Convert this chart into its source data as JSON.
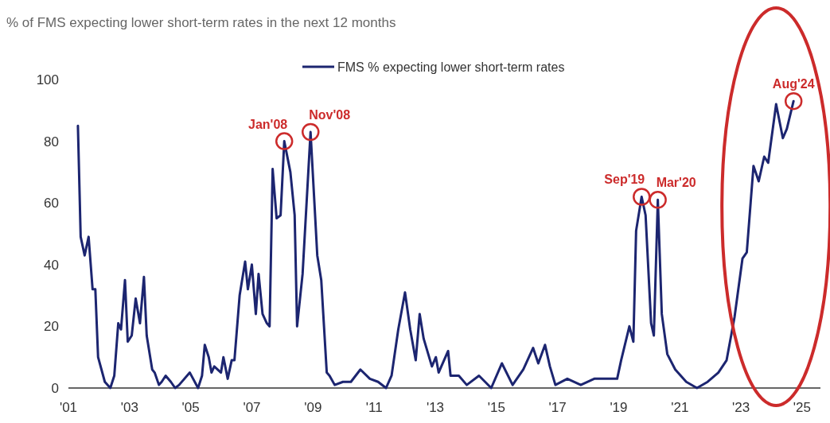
{
  "chart_data": {
    "type": "line",
    "title": "% of FMS expecting lower short-term rates in the next 12 months",
    "series": [
      {
        "name": "FMS % expecting lower short-term rates",
        "color": "#1c2570",
        "x": [
          2001.31,
          2001.4,
          2001.53,
          2001.66,
          2001.79,
          2001.88,
          2001.97,
          2002.19,
          2002.37,
          2002.5,
          2002.63,
          2002.72,
          2002.85,
          2002.94,
          2003.07,
          2003.2,
          2003.34,
          2003.47,
          2003.56,
          2003.74,
          2003.82,
          2003.96,
          2004.05,
          2004.18,
          2004.35,
          2004.49,
          2004.62,
          2004.97,
          2005.24,
          2005.37,
          2005.46,
          2005.59,
          2005.68,
          2005.77,
          2005.99,
          2006.07,
          2006.21,
          2006.34,
          2006.43,
          2006.6,
          2006.78,
          2006.87,
          2007.0,
          2007.13,
          2007.22,
          2007.35,
          2007.49,
          2007.58,
          2007.68,
          2007.81,
          2007.94,
          2008.06,
          2008.26,
          2008.4,
          2008.48,
          2008.66,
          2008.92,
          2009.14,
          2009.27,
          2009.45,
          2009.54,
          2009.71,
          2009.98,
          2010.24,
          2010.55,
          2010.86,
          2011.13,
          2011.39,
          2011.57,
          2011.79,
          2012.01,
          2012.18,
          2012.36,
          2012.49,
          2012.62,
          2012.89,
          2013.02,
          2013.11,
          2013.42,
          2013.5,
          2013.77,
          2014.03,
          2014.43,
          2014.83,
          2015.18,
          2015.53,
          2015.88,
          2016.2,
          2016.37,
          2016.59,
          2016.75,
          2016.93,
          2017.32,
          2017.76,
          2018.2,
          2018.73,
          2018.95,
          2019.08,
          2019.35,
          2019.48,
          2019.57,
          2019.75,
          2019.88,
          2020.06,
          2020.15,
          2020.28,
          2020.41,
          2020.59,
          2020.85,
          2021.21,
          2021.56,
          2021.91,
          2022.26,
          2022.53,
          2022.79,
          2023.05,
          2023.19,
          2023.41,
          2023.58,
          2023.76,
          2023.89,
          2024.15,
          2024.37,
          2024.5,
          2024.72
        ],
        "values": [
          85,
          49,
          43,
          49,
          32,
          32,
          10,
          2,
          0,
          4,
          21,
          19,
          35,
          15,
          17,
          29,
          21,
          36,
          17,
          6,
          5,
          1,
          2,
          4,
          2,
          0,
          1,
          5,
          0,
          4,
          14,
          10,
          5,
          7,
          5,
          10,
          3,
          9,
          9,
          30,
          41,
          32,
          40,
          24,
          37,
          24,
          21,
          20,
          71,
          55,
          56,
          80,
          70,
          56,
          20,
          37,
          83,
          43,
          35,
          5,
          4,
          1,
          2,
          2,
          6,
          3,
          2,
          0,
          4,
          19,
          31,
          19,
          9,
          24,
          16,
          7,
          10,
          5,
          12,
          4,
          4,
          1,
          4,
          0,
          8,
          1,
          6,
          13,
          8,
          14,
          7,
          1,
          3,
          1,
          3,
          3,
          3,
          9,
          20,
          15,
          51,
          62,
          56,
          21,
          17,
          61,
          24,
          11,
          6,
          2,
          0,
          2,
          5,
          9,
          23,
          42,
          44,
          72,
          67,
          75,
          73,
          92,
          81,
          84,
          93
        ]
      }
    ],
    "xlim": [
      2001,
      2025.6
    ],
    "xticks": [
      {
        "value": 2001,
        "label": "'01"
      },
      {
        "value": 2003,
        "label": "'03"
      },
      {
        "value": 2005,
        "label": "'05"
      },
      {
        "value": 2007,
        "label": "'07"
      },
      {
        "value": 2009,
        "label": "'09"
      },
      {
        "value": 2011,
        "label": "'11"
      },
      {
        "value": 2013,
        "label": "'13"
      },
      {
        "value": 2015,
        "label": "'15"
      },
      {
        "value": 2017,
        "label": "'17"
      },
      {
        "value": 2019,
        "label": "'19"
      },
      {
        "value": 2021,
        "label": "'21"
      },
      {
        "value": 2023,
        "label": "'23"
      },
      {
        "value": 2025,
        "label": "'25"
      }
    ],
    "ylim": [
      0,
      100
    ],
    "yticks": [
      0,
      20,
      40,
      60,
      80,
      100
    ],
    "grid": false,
    "legend": "top",
    "annotations": [
      {
        "text": "Jan'08",
        "x": 2008.06,
        "y": 80
      },
      {
        "text": "Nov'08",
        "x": 2008.92,
        "y": 83
      },
      {
        "text": "Sep'19",
        "x": 2019.75,
        "y": 62
      },
      {
        "text": "Mar'20",
        "x": 2020.28,
        "y": 61
      },
      {
        "text": "Aug'24",
        "x": 2024.72,
        "y": 93
      }
    ]
  }
}
